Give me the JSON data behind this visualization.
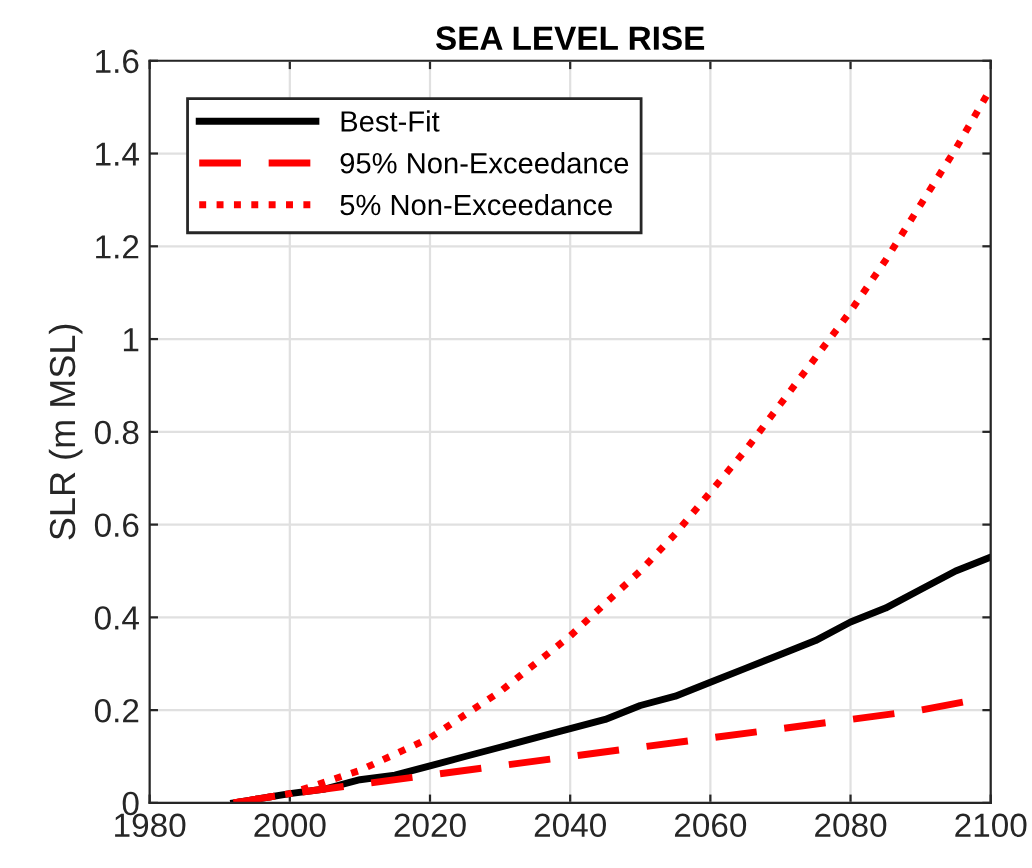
{
  "chart_data": {
    "type": "line",
    "title": "SEA LEVEL RISE",
    "ylabel": "SLR (m MSL)",
    "series": [
      {
        "name": "Best-Fit",
        "color": "#000000",
        "line_style": "solid",
        "x": [
          1992,
          2000,
          2005,
          2010,
          2015,
          2020,
          2025,
          2030,
          2035,
          2040,
          2045,
          2050,
          2055,
          2060,
          2065,
          2070,
          2075,
          2080,
          2085,
          2090,
          2095,
          2100
        ],
        "values": [
          0,
          0.02,
          0.03,
          0.05,
          0.06,
          0.08,
          0.1,
          0.12,
          0.14,
          0.16,
          0.18,
          0.21,
          0.23,
          0.26,
          0.29,
          0.32,
          0.35,
          0.39,
          0.42,
          0.46,
          0.5,
          0.53
        ]
      },
      {
        "name": "95% Non-Exceedance",
        "color": "#ff0000",
        "line_style": "dashed",
        "x": [
          1992,
          2000,
          2010,
          2020,
          2030,
          2040,
          2050,
          2060,
          2070,
          2080,
          2090,
          2097
        ],
        "values": [
          0,
          0.02,
          0.04,
          0.06,
          0.08,
          0.1,
          0.12,
          0.14,
          0.16,
          0.18,
          0.2,
          0.22
        ]
      },
      {
        "name": "5% Non-Exceedance",
        "color": "#ff0000",
        "line_style": "dotted",
        "x": [
          1992,
          2000,
          2010,
          2020,
          2030,
          2040,
          2045,
          2050,
          2055,
          2060,
          2065,
          2070,
          2075,
          2080,
          2085,
          2090,
          2095,
          2100
        ],
        "values": [
          0,
          0.02,
          0.07,
          0.14,
          0.24,
          0.36,
          0.43,
          0.5,
          0.58,
          0.67,
          0.76,
          0.86,
          0.96,
          1.06,
          1.17,
          1.29,
          1.41,
          1.54
        ]
      }
    ],
    "xlim": [
      1980,
      2100
    ],
    "xticks": [
      1980,
      2000,
      2020,
      2040,
      2060,
      2080,
      2100
    ],
    "ylim": [
      0,
      1.6
    ],
    "yticks": [
      0,
      0.2,
      0.4,
      0.6,
      0.8,
      1,
      1.2,
      1.4,
      1.6
    ],
    "grid": true,
    "legend": "top left"
  }
}
